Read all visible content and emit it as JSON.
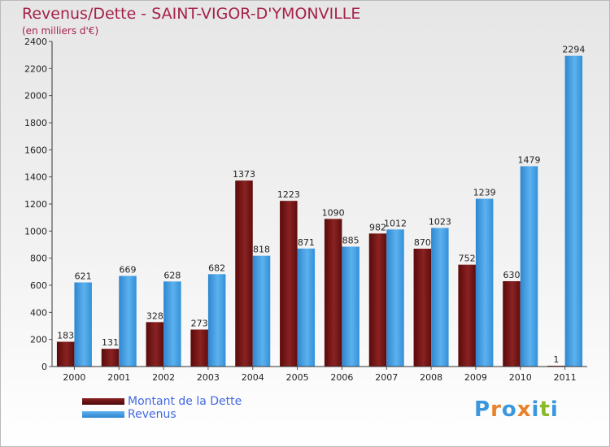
{
  "title": "Revenus/Dette - SAINT-VIGOR-D'YMONVILLE",
  "subtitle": "(en milliers d'€)",
  "colors": {
    "dette": "#6e1010",
    "revenus": "#3a97de",
    "title": "#a5224a",
    "legend_text": "#4169e1"
  },
  "chart_data": {
    "type": "bar",
    "categories": [
      "2000",
      "2001",
      "2002",
      "2003",
      "2004",
      "2005",
      "2006",
      "2007",
      "2008",
      "2009",
      "2010",
      "2011"
    ],
    "series": [
      {
        "name": "Montant de la Dette",
        "values": [
          183,
          131,
          328,
          273,
          1373,
          1223,
          1090,
          982,
          870,
          752,
          630,
          1
        ]
      },
      {
        "name": "Revenus",
        "values": [
          621,
          669,
          628,
          682,
          818,
          871,
          885,
          1012,
          1023,
          1239,
          1479,
          2294
        ]
      }
    ],
    "title": "Revenus/Dette - SAINT-VIGOR-D'YMONVILLE",
    "ylim": [
      0,
      2400
    ],
    "yticks": [
      0,
      200,
      400,
      600,
      800,
      1000,
      1200,
      1400,
      1600,
      1800,
      2000,
      2200,
      2400
    ],
    "grid": false,
    "legend_position": "bottom-left"
  },
  "logo": {
    "text": "Proxiti",
    "letter_colors": [
      "#3a97de",
      "#e8832a",
      "#3a97de",
      "#e8832a",
      "#3a97de",
      "#8ab828",
      "#3a97de"
    ]
  }
}
